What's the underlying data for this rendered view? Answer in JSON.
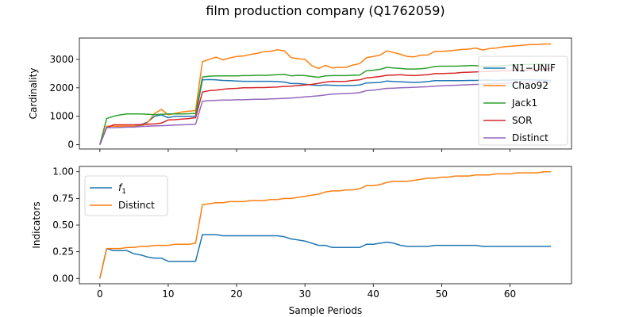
{
  "figure_title": "film production company (Q1762059)",
  "xlabel": "Sample Periods",
  "chart_data": [
    {
      "type": "line",
      "ylabel": "Cardinality",
      "xlim": [
        -3,
        69
      ],
      "ylim": [
        -150,
        3750
      ],
      "xticks": [
        0,
        10,
        20,
        30,
        40,
        50,
        60
      ],
      "yticks": [
        0,
        1000,
        2000,
        3000
      ],
      "x": [
        0,
        1,
        2,
        3,
        4,
        5,
        6,
        7,
        8,
        9,
        10,
        11,
        12,
        13,
        14,
        15,
        16,
        17,
        18,
        19,
        20,
        21,
        22,
        23,
        24,
        25,
        26,
        27,
        28,
        29,
        30,
        31,
        32,
        33,
        34,
        35,
        36,
        37,
        38,
        39,
        40,
        41,
        42,
        43,
        44,
        45,
        46,
        47,
        48,
        49,
        50,
        51,
        52,
        53,
        54,
        55,
        56,
        57,
        58,
        59,
        60,
        61,
        62,
        63,
        64,
        65,
        66
      ],
      "legend_position": "right",
      "series": [
        {
          "name": "N1−UNIF",
          "color": "#1f77b4",
          "values": [
            0,
            650,
            650,
            650,
            650,
            650,
            700,
            800,
            1000,
            1050,
            950,
            1000,
            1000,
            1000,
            1000,
            2280,
            2290,
            2280,
            2260,
            2250,
            2240,
            2230,
            2230,
            2230,
            2230,
            2230,
            2220,
            2200,
            2150,
            2150,
            2130,
            2100,
            2080,
            2100,
            2090,
            2080,
            2080,
            2080,
            2100,
            2170,
            2180,
            2190,
            2240,
            2220,
            2210,
            2200,
            2190,
            2200,
            2220,
            2250,
            2250,
            2250,
            2250,
            2250,
            2260,
            2260,
            2270,
            2270,
            2260,
            2270,
            2270,
            2280,
            2280,
            2280,
            2270,
            2270,
            2260
          ]
        },
        {
          "name": "Chao92",
          "color": "#ff7f0e",
          "values": [
            0,
            650,
            650,
            650,
            650,
            650,
            650,
            780,
            1100,
            1240,
            1050,
            1100,
            1150,
            1180,
            1200,
            2920,
            3000,
            3080,
            2980,
            3050,
            3100,
            3120,
            3170,
            3210,
            3270,
            3280,
            3340,
            3300,
            3060,
            3020,
            3000,
            2780,
            2680,
            2790,
            2700,
            2720,
            2720,
            2800,
            2850,
            3060,
            3100,
            3150,
            3300,
            3240,
            3180,
            3100,
            3090,
            3150,
            3150,
            3280,
            3280,
            3300,
            3320,
            3350,
            3360,
            3400,
            3330,
            3380,
            3400,
            3440,
            3460,
            3480,
            3500,
            3520,
            3520,
            3540,
            3540
          ]
        },
        {
          "name": "Jack1",
          "color": "#2ca02c",
          "values": [
            0,
            920,
            1000,
            1050,
            1080,
            1080,
            1080,
            1070,
            1060,
            1070,
            1080,
            1080,
            1080,
            1090,
            1100,
            2380,
            2410,
            2420,
            2420,
            2420,
            2420,
            2430,
            2430,
            2440,
            2440,
            2450,
            2460,
            2470,
            2420,
            2440,
            2430,
            2400,
            2370,
            2420,
            2430,
            2430,
            2430,
            2440,
            2450,
            2600,
            2620,
            2650,
            2720,
            2700,
            2680,
            2660,
            2660,
            2670,
            2700,
            2750,
            2760,
            2760,
            2760,
            2770,
            2780,
            2780,
            2750,
            2760,
            2770,
            2780,
            2800,
            2810,
            2820,
            2820,
            2830,
            2840,
            2840
          ]
        },
        {
          "name": "SOR",
          "color": "#d62728",
          "values": [
            0,
            600,
            700,
            700,
            700,
            700,
            710,
            720,
            730,
            760,
            870,
            880,
            900,
            920,
            950,
            1850,
            1900,
            1920,
            1950,
            1970,
            1980,
            2000,
            2000,
            2010,
            2010,
            2020,
            2030,
            2050,
            2060,
            2080,
            2100,
            2120,
            2160,
            2200,
            2230,
            2220,
            2230,
            2260,
            2280,
            2350,
            2370,
            2400,
            2440,
            2450,
            2460,
            2440,
            2430,
            2450,
            2460,
            2500,
            2500,
            2510,
            2520,
            2540,
            2550,
            2560,
            2570,
            2580,
            2590,
            2600,
            2600,
            2610,
            2620,
            2630,
            2640,
            2660,
            2670
          ]
        },
        {
          "name": "Distinct",
          "color": "#9467bd",
          "values": [
            0,
            600,
            600,
            610,
            620,
            620,
            640,
            650,
            660,
            670,
            680,
            690,
            700,
            710,
            720,
            1530,
            1550,
            1560,
            1570,
            1570,
            1580,
            1580,
            1590,
            1600,
            1600,
            1610,
            1620,
            1630,
            1640,
            1660,
            1680,
            1700,
            1720,
            1750,
            1780,
            1790,
            1800,
            1810,
            1830,
            1900,
            1920,
            1950,
            1980,
            1990,
            2000,
            2010,
            2020,
            2030,
            2040,
            2060,
            2070,
            2080,
            2090,
            2100,
            2110,
            2120,
            2130,
            2140,
            2150,
            2160,
            2170,
            2180,
            2190,
            2200,
            2200,
            2200,
            2200
          ]
        }
      ]
    },
    {
      "type": "line",
      "ylabel": "Indicators",
      "xlim": [
        -3,
        69
      ],
      "ylim": [
        -0.05,
        1.05
      ],
      "xticks": [
        0,
        10,
        20,
        30,
        40,
        50,
        60
      ],
      "yticks": [
        0.0,
        0.25,
        0.5,
        0.75,
        1.0
      ],
      "ytick_labels": [
        "0.00",
        "0.25",
        "0.50",
        "0.75",
        "1.00"
      ],
      "legend_position": "upper left",
      "x": [
        0,
        1,
        2,
        3,
        4,
        5,
        6,
        7,
        8,
        9,
        10,
        11,
        12,
        13,
        14,
        15,
        16,
        17,
        18,
        19,
        20,
        21,
        22,
        23,
        24,
        25,
        26,
        27,
        28,
        29,
        30,
        31,
        32,
        33,
        34,
        35,
        36,
        37,
        38,
        39,
        40,
        41,
        42,
        43,
        44,
        45,
        46,
        47,
        48,
        49,
        50,
        51,
        52,
        53,
        54,
        55,
        56,
        57,
        58,
        59,
        60,
        61,
        62,
        63,
        64,
        65,
        66
      ],
      "series": [
        {
          "name": "f1",
          "name_main": "f",
          "name_sub": "1",
          "color": "#1f77b4",
          "values": [
            0,
            0.28,
            0.26,
            0.26,
            0.26,
            0.23,
            0.22,
            0.2,
            0.19,
            0.19,
            0.16,
            0.16,
            0.16,
            0.16,
            0.16,
            0.41,
            0.41,
            0.41,
            0.4,
            0.4,
            0.4,
            0.4,
            0.4,
            0.4,
            0.4,
            0.4,
            0.4,
            0.39,
            0.37,
            0.36,
            0.35,
            0.33,
            0.31,
            0.31,
            0.29,
            0.29,
            0.29,
            0.29,
            0.29,
            0.32,
            0.32,
            0.33,
            0.34,
            0.33,
            0.31,
            0.3,
            0.3,
            0.3,
            0.3,
            0.31,
            0.31,
            0.31,
            0.31,
            0.31,
            0.31,
            0.31,
            0.3,
            0.3,
            0.3,
            0.3,
            0.3,
            0.3,
            0.3,
            0.3,
            0.3,
            0.3,
            0.3
          ]
        },
        {
          "name": "Distinct",
          "color": "#ff7f0e",
          "values": [
            0,
            0.28,
            0.28,
            0.28,
            0.29,
            0.29,
            0.3,
            0.3,
            0.31,
            0.31,
            0.31,
            0.32,
            0.32,
            0.32,
            0.33,
            0.69,
            0.7,
            0.71,
            0.71,
            0.72,
            0.72,
            0.72,
            0.73,
            0.73,
            0.73,
            0.74,
            0.74,
            0.75,
            0.75,
            0.76,
            0.77,
            0.78,
            0.79,
            0.81,
            0.82,
            0.82,
            0.83,
            0.83,
            0.84,
            0.87,
            0.87,
            0.88,
            0.9,
            0.91,
            0.91,
            0.91,
            0.92,
            0.93,
            0.94,
            0.94,
            0.95,
            0.95,
            0.96,
            0.96,
            0.96,
            0.97,
            0.97,
            0.97,
            0.98,
            0.98,
            0.98,
            0.99,
            0.99,
            0.99,
            0.99,
            1.0,
            1.0
          ]
        }
      ]
    }
  ]
}
